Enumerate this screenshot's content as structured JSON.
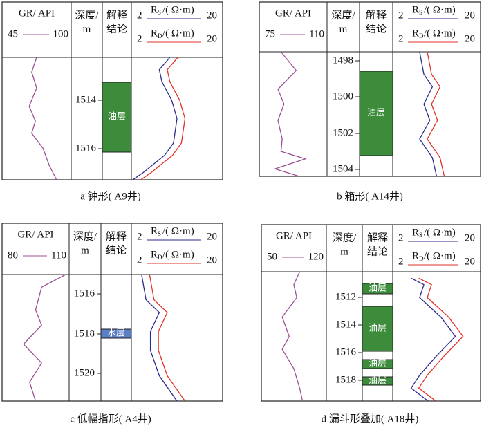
{
  "panels": [
    {
      "gr": {
        "label": "GR/ API",
        "min": "45",
        "max": "100"
      },
      "depth": {
        "line1": "深度/",
        "line2": "m",
        "ticks": [
          1514,
          1516
        ]
      },
      "interp": {
        "line1": "解释",
        "line2": "结论",
        "layers": [
          "油层"
        ]
      },
      "rs": {
        "symbol": "R",
        "sub": "S",
        "unit": "/( Ω·m)",
        "min": "2",
        "max": "20"
      },
      "rd": {
        "symbol": "R",
        "sub": "D",
        "unit": "/( Ω·m)",
        "min": "2",
        "max": "20"
      },
      "caption": "a  钟形( A9井)"
    },
    {
      "gr": {
        "label": "GR/ API",
        "min": "75",
        "max": "110"
      },
      "depth": {
        "line1": "深度/",
        "line2": "m",
        "ticks": [
          1498,
          1500,
          1502,
          1504
        ]
      },
      "interp": {
        "line1": "解释",
        "line2": "结论",
        "layers": [
          "油层"
        ]
      },
      "rs": {
        "symbol": "R",
        "sub": "S",
        "unit": "/( Ω·m)",
        "min": "2",
        "max": "20"
      },
      "rd": {
        "symbol": "R",
        "sub": "D",
        "unit": "/( Ω·m)",
        "min": "2",
        "max": "20"
      },
      "caption": "b  箱形( A14井)"
    },
    {
      "gr": {
        "label": "GR/ API",
        "min": "80",
        "max": "110"
      },
      "depth": {
        "line1": "深度/",
        "line2": "m",
        "ticks": [
          1516,
          1518,
          1520
        ]
      },
      "interp": {
        "line1": "解释",
        "line2": "结论",
        "layers": [
          "水层"
        ]
      },
      "rs": {
        "symbol": "R",
        "sub": "S",
        "unit": "/( Ω·m)",
        "min": "2",
        "max": "20"
      },
      "rd": {
        "symbol": "R",
        "sub": "D",
        "unit": "/( Ω·m)",
        "min": "2",
        "max": "20"
      },
      "caption": "c  低幅指形( A4井)"
    },
    {
      "gr": {
        "label": "GR/ API",
        "min": "50",
        "max": "120"
      },
      "depth": {
        "line1": "深度/",
        "line2": "m",
        "ticks": [
          1512,
          1514,
          1516,
          1518
        ]
      },
      "interp": {
        "line1": "解释",
        "line2": "结论",
        "layers": [
          "油层",
          "油层",
          "油层",
          "油层"
        ]
      },
      "rs": {
        "symbol": "R",
        "sub": "S",
        "unit": "/( Ω·m)",
        "min": "2",
        "max": "20"
      },
      "rd": {
        "symbol": "R",
        "sub": "D",
        "unit": "/( Ω·m)",
        "min": "2",
        "max": "20"
      },
      "caption": "d  漏斗形叠加( A18井)"
    }
  ]
}
